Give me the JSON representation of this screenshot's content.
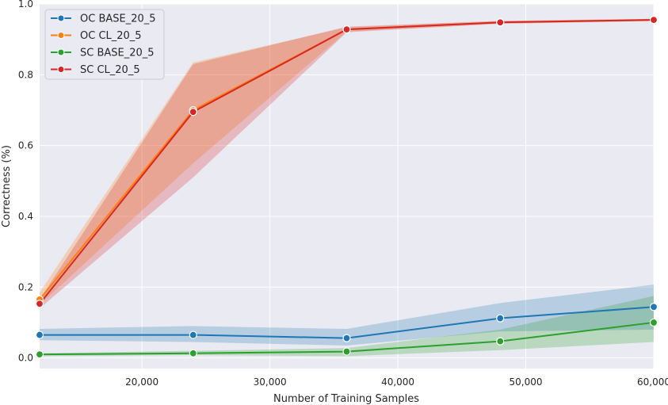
{
  "chart_data": {
    "type": "line",
    "title": "",
    "xlabel": "Number of Training Samples",
    "ylabel": "Correctness (%)",
    "xlim": [
      12000,
      60000
    ],
    "ylim": [
      -0.03,
      1.0
    ],
    "xticks": [
      20000,
      30000,
      40000,
      50000,
      60000
    ],
    "xtick_labels": [
      "20,000",
      "30,000",
      "40,000",
      "50,000",
      "60,000"
    ],
    "yticks": [
      0.0,
      0.2,
      0.4,
      0.6,
      0.8,
      1.0
    ],
    "ytick_labels": [
      "0.0",
      "0.2",
      "0.4",
      "0.6",
      "0.8",
      "1.0"
    ],
    "grid": true,
    "legend_position": "top-left",
    "x": [
      12000,
      24000,
      36000,
      48000,
      60000
    ],
    "series": [
      {
        "name": "OC BASE_20_5",
        "color": "#1f77b4",
        "values": [
          0.065,
          0.065,
          0.056,
          0.112,
          0.144
        ],
        "lower": [
          0.05,
          0.045,
          0.035,
          0.075,
          0.08
        ],
        "upper": [
          0.082,
          0.09,
          0.082,
          0.155,
          0.207
        ]
      },
      {
        "name": "OC CL_20_5",
        "color": "#ff7f0e",
        "values": [
          0.165,
          0.7,
          0.928,
          0.948,
          0.955
        ],
        "lower": [
          0.15,
          0.55,
          0.922,
          0.945,
          0.952
        ],
        "upper": [
          0.185,
          0.835,
          0.934,
          0.952,
          0.958
        ]
      },
      {
        "name": "SC BASE_20_5",
        "color": "#2ca02c",
        "values": [
          0.01,
          0.013,
          0.018,
          0.047,
          0.1
        ],
        "lower": [
          0.005,
          0.008,
          0.005,
          0.022,
          0.045
        ],
        "upper": [
          0.013,
          0.02,
          0.028,
          0.08,
          0.175
        ]
      },
      {
        "name": "SC CL_20_5",
        "color": "#d62728",
        "values": [
          0.153,
          0.695,
          0.928,
          0.948,
          0.955
        ],
        "lower": [
          0.14,
          0.51,
          0.92,
          0.944,
          0.952
        ],
        "upper": [
          0.165,
          0.83,
          0.936,
          0.952,
          0.958
        ]
      }
    ]
  }
}
